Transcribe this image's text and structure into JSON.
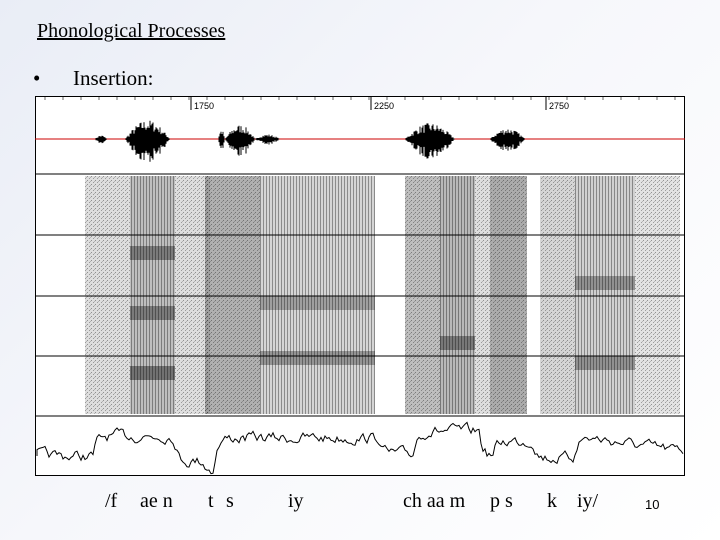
{
  "slide": {
    "title": "Phonological Processes",
    "bullet": "•",
    "bullet_text": "Insertion:",
    "page_number": "10"
  },
  "figure": {
    "time_ticks": [
      "1750",
      "2250",
      "2750"
    ],
    "phones": [
      "/f",
      "ae n",
      "t",
      "s",
      "iy",
      "ch aa m",
      "p s",
      "k",
      "iy/"
    ],
    "waveform_baseline_color": "#cc0000"
  }
}
